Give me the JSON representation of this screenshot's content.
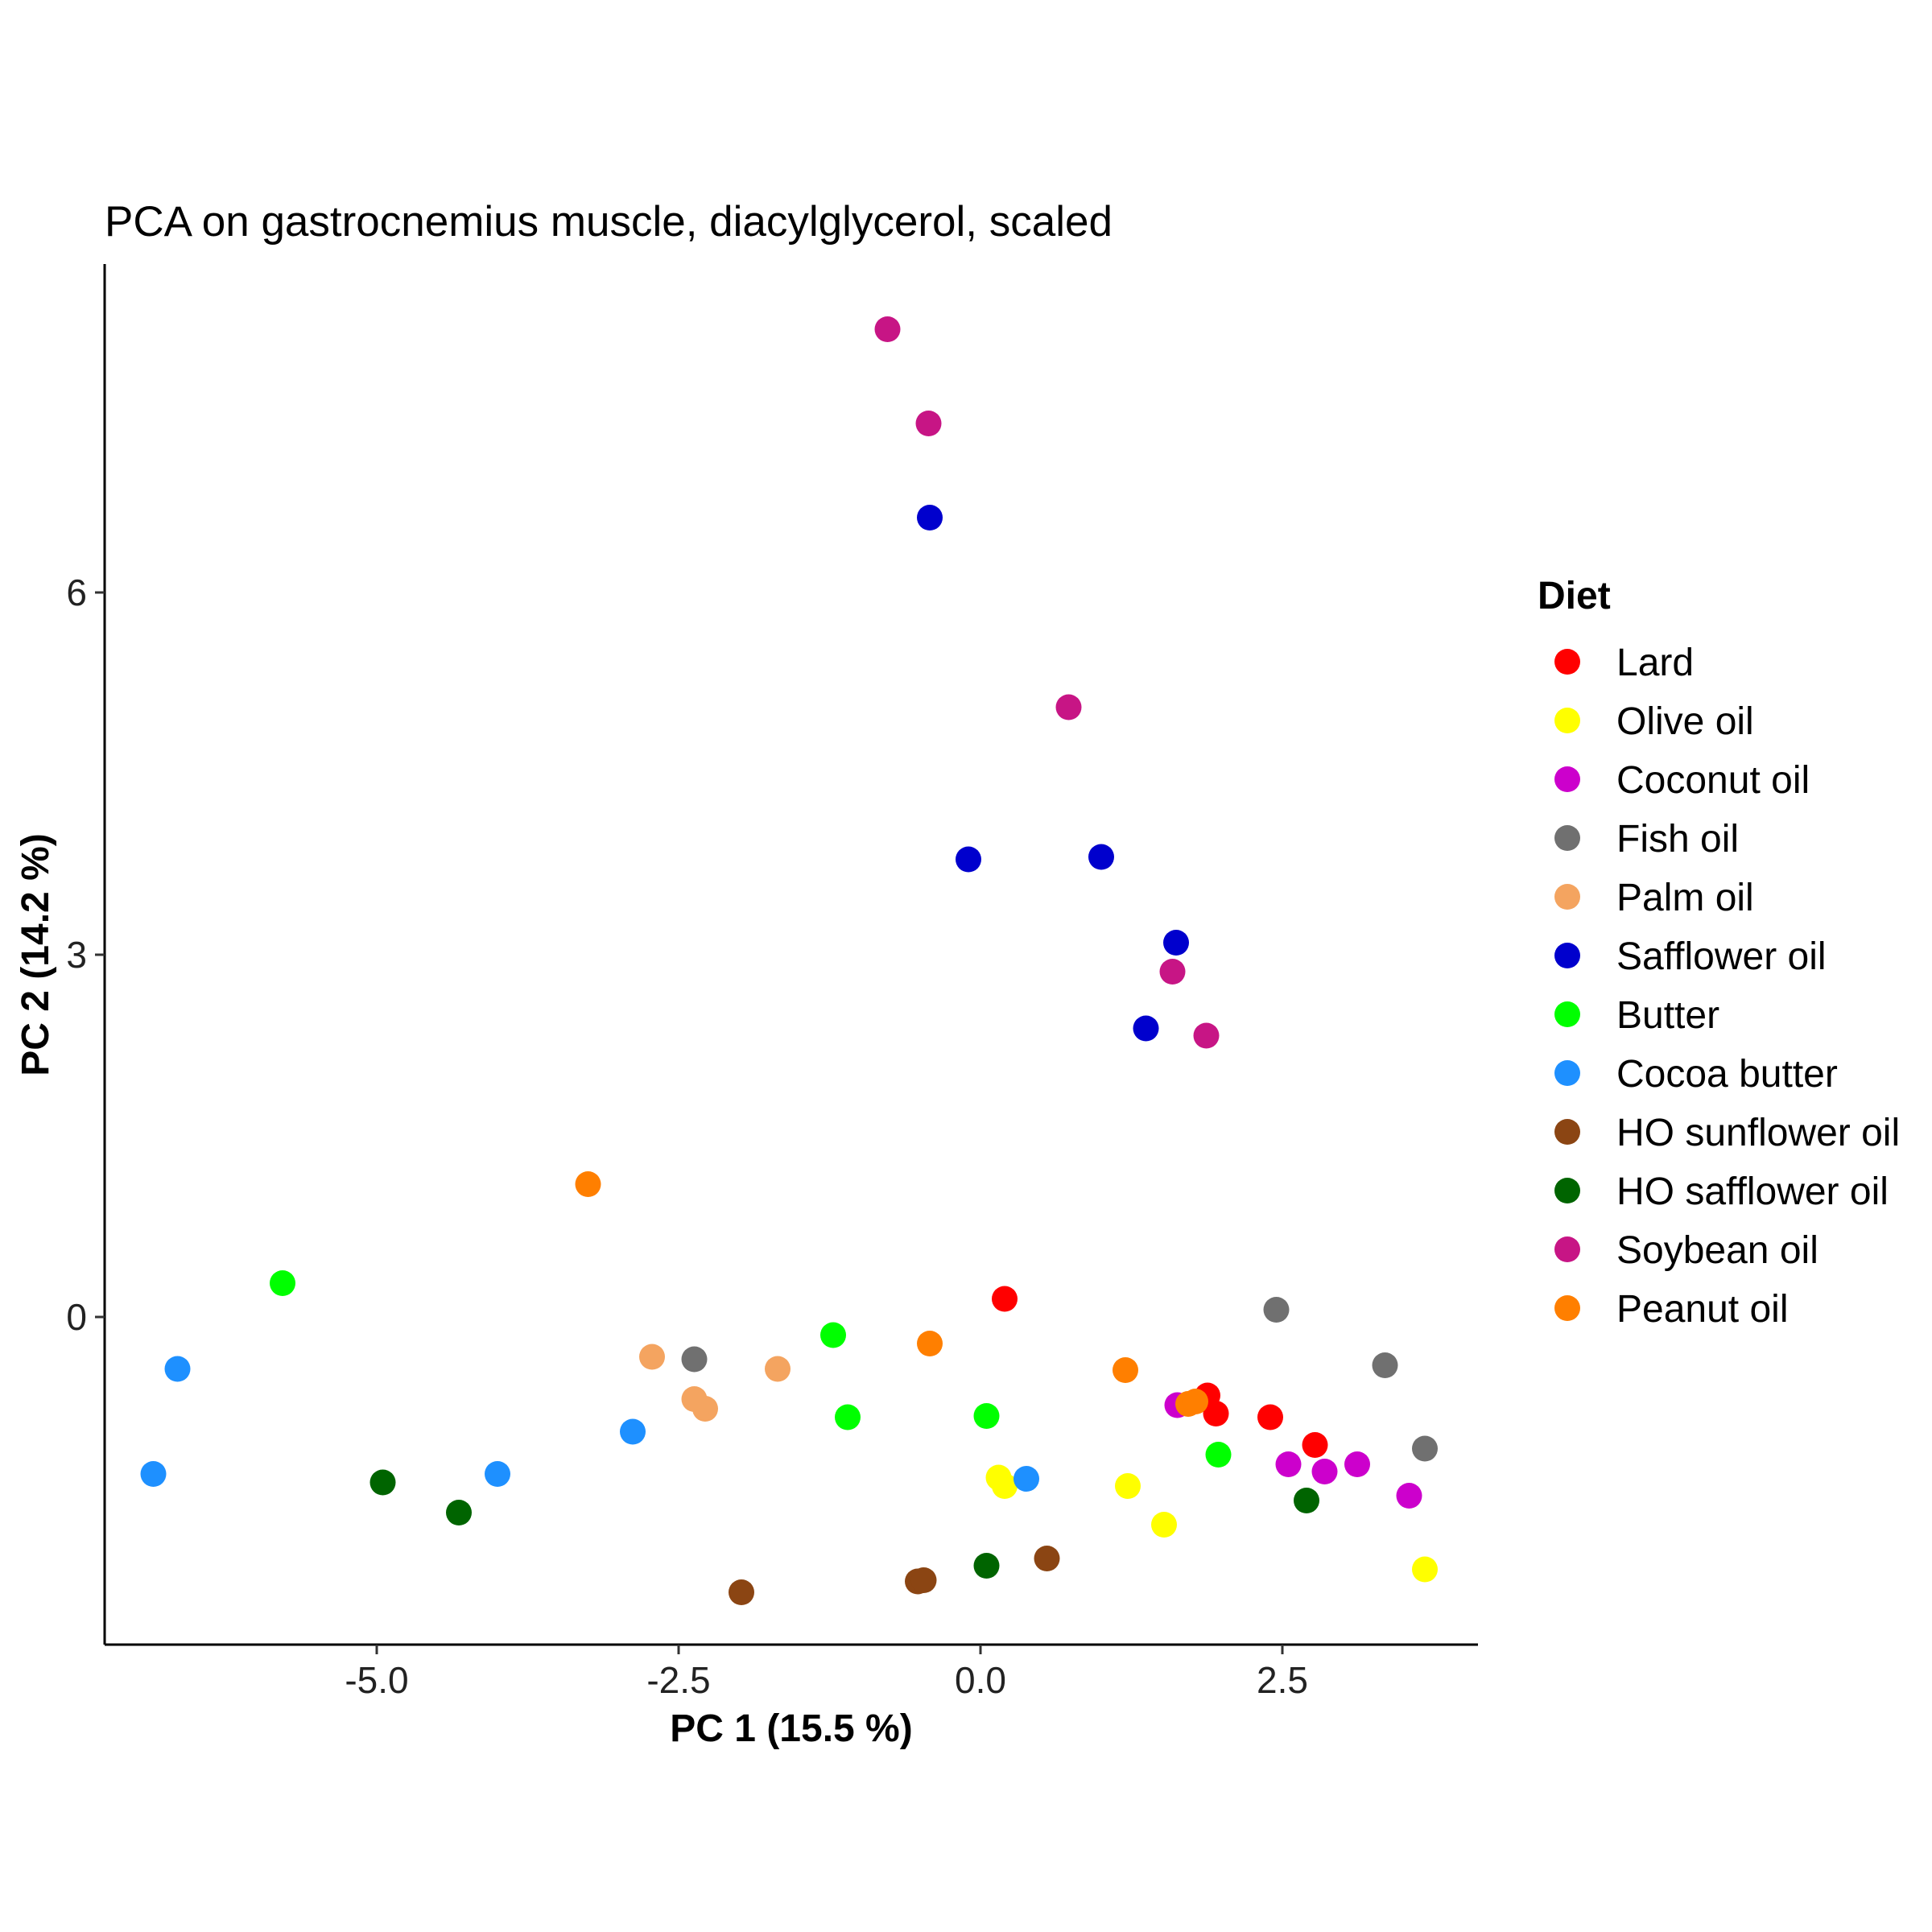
{
  "chart_data": {
    "type": "scatter",
    "title": "PCA on gastrocnemius muscle, diacylglycerol, scaled",
    "xlabel": "PC 1 (15.5 %)",
    "ylabel": "PC 2 (14.2 %)",
    "xlim": [
      -7.2,
      4.2
    ],
    "ylim": [
      -2.8,
      8.9
    ],
    "xticks": [
      -5.0,
      -2.5,
      0.0,
      2.5
    ],
    "xtick_labels": [
      "-5.0",
      "-2.5",
      "0.0",
      "2.5"
    ],
    "yticks": [
      0,
      3,
      6
    ],
    "ytick_labels": [
      "0",
      "3",
      "6"
    ],
    "grid": false,
    "legend_title": "Diet",
    "legend_position": "right",
    "series": [
      {
        "name": "Lard",
        "color": "#FF0000",
        "points": [
          [
            0.2,
            0.15
          ],
          [
            1.88,
            -0.65
          ],
          [
            1.95,
            -0.8
          ],
          [
            2.4,
            -0.83
          ],
          [
            2.77,
            -1.06
          ]
        ]
      },
      {
        "name": "Olive oil",
        "color": "#FFFF00",
        "points": [
          [
            0.15,
            -1.33
          ],
          [
            0.2,
            -1.4
          ],
          [
            1.22,
            -1.4
          ],
          [
            1.52,
            -1.72
          ],
          [
            3.68,
            -2.09
          ]
        ]
      },
      {
        "name": "Coconut oil",
        "color": "#CC00CC",
        "points": [
          [
            1.63,
            -0.73
          ],
          [
            2.55,
            -1.22
          ],
          [
            2.85,
            -1.28
          ],
          [
            3.12,
            -1.22
          ],
          [
            3.55,
            -1.48
          ]
        ]
      },
      {
        "name": "Fish oil",
        "color": "#707070",
        "points": [
          [
            -2.37,
            -0.35
          ],
          [
            2.45,
            0.06
          ],
          [
            3.35,
            -0.4
          ],
          [
            3.68,
            -1.09
          ]
        ]
      },
      {
        "name": "Palm oil",
        "color": "#F4A460",
        "points": [
          [
            -2.72,
            -0.33
          ],
          [
            -2.37,
            -0.68
          ],
          [
            -2.28,
            -0.76
          ],
          [
            -1.68,
            -0.43
          ]
        ]
      },
      {
        "name": "Safflower oil",
        "color": "#0000CD",
        "points": [
          [
            -0.42,
            6.62
          ],
          [
            -0.1,
            3.79
          ],
          [
            1.0,
            3.81
          ],
          [
            1.62,
            3.1
          ],
          [
            1.37,
            2.39
          ]
        ]
      },
      {
        "name": "Butter",
        "color": "#00FF00",
        "points": [
          [
            -5.78,
            0.28
          ],
          [
            -1.22,
            -0.15
          ],
          [
            -1.1,
            -0.83
          ],
          [
            0.05,
            -0.82
          ],
          [
            1.97,
            -1.14
          ]
        ]
      },
      {
        "name": "Cocoa butter",
        "color": "#1E90FF",
        "points": [
          [
            -6.65,
            -0.43
          ],
          [
            -6.85,
            -1.3
          ],
          [
            -4.0,
            -1.3
          ],
          [
            -2.88,
            -0.95
          ],
          [
            0.38,
            -1.34
          ]
        ]
      },
      {
        "name": "HO sunflower oil",
        "color": "#8B4513",
        "points": [
          [
            -1.98,
            -2.28
          ],
          [
            -0.52,
            -2.19
          ],
          [
            -0.47,
            -2.18
          ],
          [
            0.55,
            -2.0
          ]
        ]
      },
      {
        "name": "HO safflower oil",
        "color": "#006400",
        "points": [
          [
            -4.95,
            -1.37
          ],
          [
            -4.32,
            -1.62
          ],
          [
            0.05,
            -2.06
          ],
          [
            2.7,
            -1.52
          ]
        ]
      },
      {
        "name": "Soybean oil",
        "color": "#C71585",
        "points": [
          [
            -0.77,
            8.18
          ],
          [
            -0.43,
            7.4
          ],
          [
            0.73,
            5.05
          ],
          [
            1.59,
            2.86
          ],
          [
            1.87,
            2.33
          ]
        ]
      },
      {
        "name": "Peanut oil",
        "color": "#FF7F00",
        "points": [
          [
            -3.25,
            1.1
          ],
          [
            -0.42,
            -0.22
          ],
          [
            1.2,
            -0.44
          ],
          [
            1.72,
            -0.72
          ],
          [
            1.78,
            -0.7
          ]
        ]
      }
    ]
  }
}
